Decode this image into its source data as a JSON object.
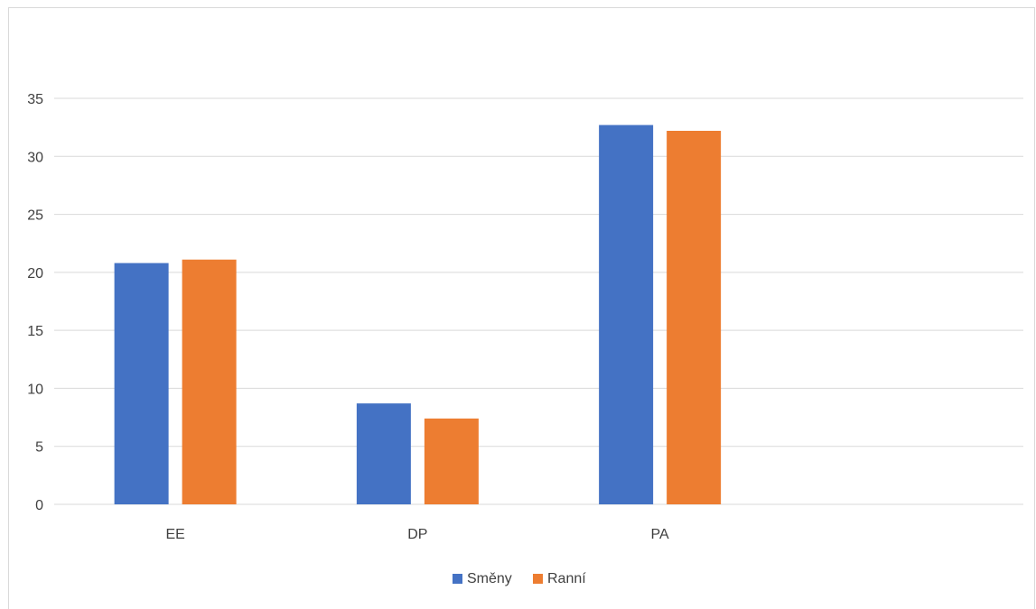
{
  "chart_data": {
    "type": "bar",
    "title": "",
    "xlabel": "",
    "ylabel": "",
    "categories": [
      "EE",
      "DP",
      "PA",
      ""
    ],
    "series": [
      {
        "name": "Směny",
        "color": "#4472c4",
        "values": [
          20.8,
          8.7,
          32.7,
          null
        ]
      },
      {
        "name": "Ranní",
        "color": "#ed7d31",
        "values": [
          21.1,
          7.4,
          32.2,
          null
        ]
      }
    ],
    "ylim": [
      0,
      35
    ],
    "yticks": [
      0,
      5,
      10,
      15,
      20,
      25,
      30,
      35
    ],
    "grid": true,
    "gridColor": "#d9d9d9",
    "legend": "bottom"
  }
}
